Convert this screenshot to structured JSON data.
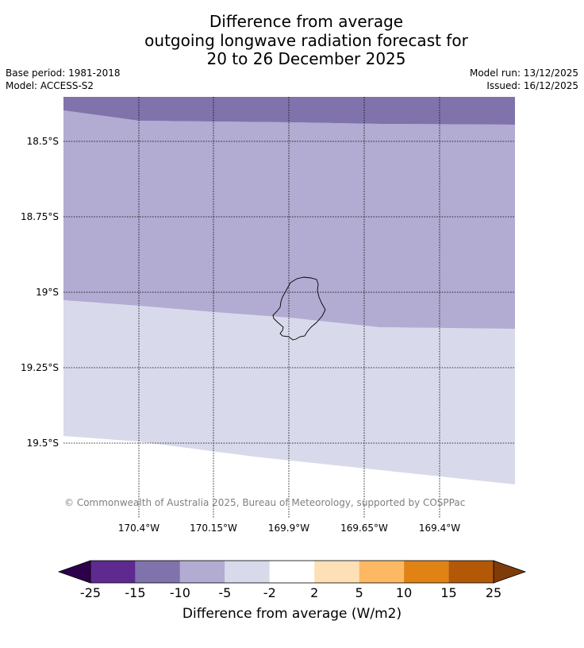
{
  "title": {
    "line1": "Difference from average",
    "line2": "outgoing longwave radiation forecast for",
    "line3": "20 to 26 December 2025"
  },
  "info": {
    "base_period": "Base period: 1981-2018",
    "model": "Model: ACCESS-S2",
    "model_run": "Model run: 13/12/2025",
    "issued": "Issued: 16/12/2025"
  },
  "map": {
    "lat_labels": [
      "18.5°S",
      "18.75°S",
      "19°S",
      "19.25°S",
      "19.5°S"
    ],
    "lon_labels": [
      "170.4°W",
      "170.15°W",
      "169.9°W",
      "169.65°W",
      "169.4°W"
    ],
    "copyright": "© Commonwealth of Australia 2025, Bureau of Meteorology, supported by COSPPac",
    "land_feature": "Niue island outline",
    "region_colors": {
      "minus15_to_minus10": "#8073ac",
      "minus10_to_minus5": "#b2abd2",
      "minus5_to_minus2": "#d8daeb",
      "minus2_to_2": "#ffffff"
    }
  },
  "colorbar": {
    "ticks": [
      "-25",
      "-15",
      "-10",
      "-5",
      "-2",
      "2",
      "5",
      "10",
      "15",
      "25"
    ],
    "colors": [
      "#5e2a8f",
      "#8073ac",
      "#b2abd2",
      "#d8daeb",
      "#ffffff",
      "#fee0b6",
      "#fdb863",
      "#e08214",
      "#b35806"
    ],
    "low_extend_color": "#2d004b",
    "high_extend_color": "#7f3b08",
    "label": "Difference from average (W/m2)"
  }
}
